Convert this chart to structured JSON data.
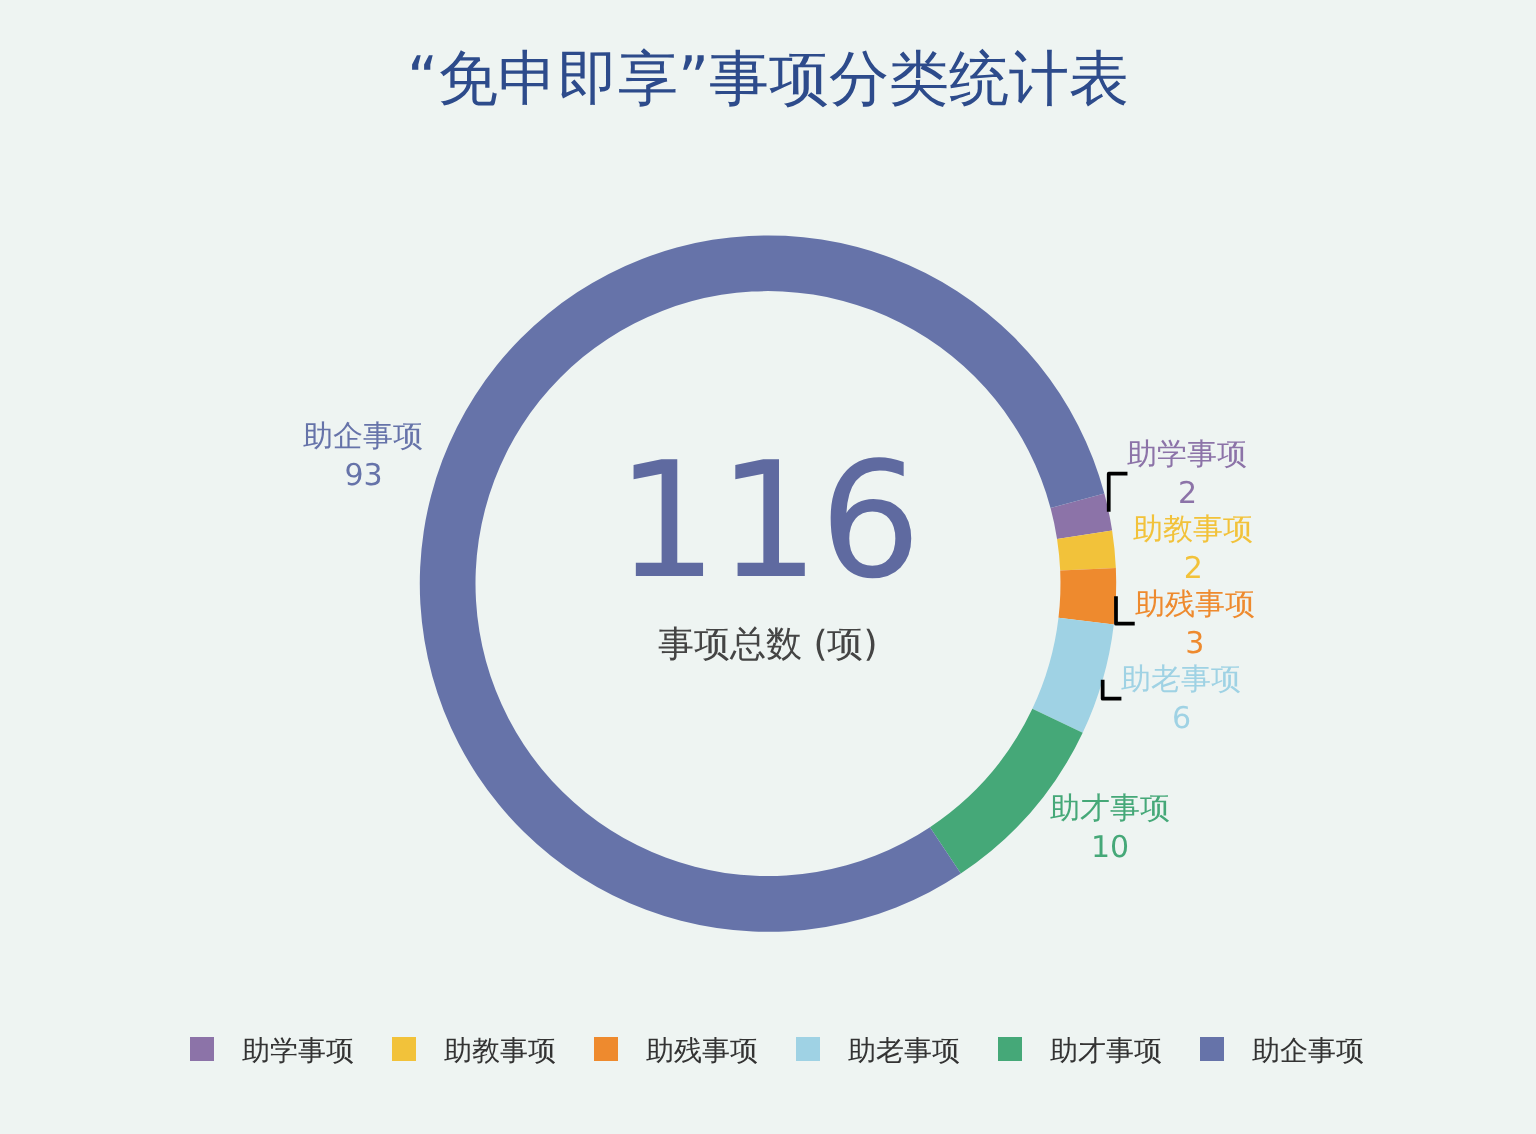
{
  "chart_data": {
    "type": "donut",
    "title": "“免申即享”事项分类统计表",
    "categories": [
      "助学事项",
      "助教事项",
      "助残事项",
      "助老事项",
      "助才事项",
      "助企事项"
    ],
    "values": [
      2,
      2,
      3,
      6,
      10,
      93
    ],
    "colors": [
      "#8c73a8",
      "#f2c23a",
      "#ee8a2e",
      "#9fd2e4",
      "#45a878",
      "#6673a9"
    ],
    "data_labels": true,
    "annotations": [
      "116",
      "事项总数 (项)"
    ],
    "legend": "bottom"
  }
}
